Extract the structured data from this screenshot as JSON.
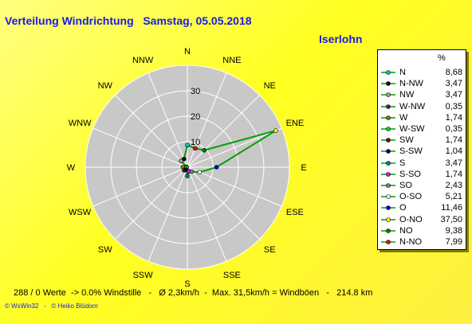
{
  "header": {
    "title": "Verteilung Windrichtung   Samstag, 05.05.2018",
    "location": "Iserlohn"
  },
  "chart_data": {
    "type": "radar",
    "title": "Verteilung Windrichtung   Samstag, 05.05.2018",
    "directions": [
      "N",
      "NNE",
      "NE",
      "ENE",
      "E",
      "ESE",
      "SE",
      "SSE",
      "S",
      "SSW",
      "SW",
      "WSW",
      "W",
      "WNW",
      "NW",
      "NNW"
    ],
    "ring_labels": [
      "10",
      "20",
      "30"
    ],
    "rlim": [
      0,
      40
    ],
    "grid": true,
    "legend_position": "right",
    "legend_unit": "%",
    "series_line_color": "#00a000",
    "series": [
      {
        "name": "N",
        "value": 8.68,
        "color": "#00c8c8"
      },
      {
        "name": "N-NW",
        "value": 3.47,
        "color": "#000000"
      },
      {
        "name": "NW",
        "value": 3.47,
        "color": "#a0a0a0"
      },
      {
        "name": "W-NW",
        "value": 0.35,
        "color": "#800080"
      },
      {
        "name": "W",
        "value": 1.74,
        "color": "#808000"
      },
      {
        "name": "W-SW",
        "value": 0.35,
        "color": "#00e000"
      },
      {
        "name": "SW",
        "value": 1.74,
        "color": "#800000"
      },
      {
        "name": "S-SW",
        "value": 1.04,
        "color": "#000080"
      },
      {
        "name": "S",
        "value": 3.47,
        "color": "#008080"
      },
      {
        "name": "S-SO",
        "value": 1.74,
        "color": "#ff00ff"
      },
      {
        "name": "SO",
        "value": 2.43,
        "color": "#808080"
      },
      {
        "name": "O-SO",
        "value": 5.21,
        "color": "#ffffff"
      },
      {
        "name": "O",
        "value": 11.46,
        "color": "#0000ff"
      },
      {
        "name": "O-NO",
        "value": 37.5,
        "color": "#ffff00"
      },
      {
        "name": "NO",
        "value": 9.38,
        "color": "#008000"
      },
      {
        "name": "N-NO",
        "value": 7.99,
        "color": "#ff0000"
      }
    ]
  },
  "footer": {
    "summary": "288 / 0 Werte  -> 0.0% Windstille   -   Ø 2,3km/h  -  Max. 31,5km/h = Windböen   -   214.8 km",
    "credits": "© WsWin32   -   © Heiko Blödorn"
  }
}
